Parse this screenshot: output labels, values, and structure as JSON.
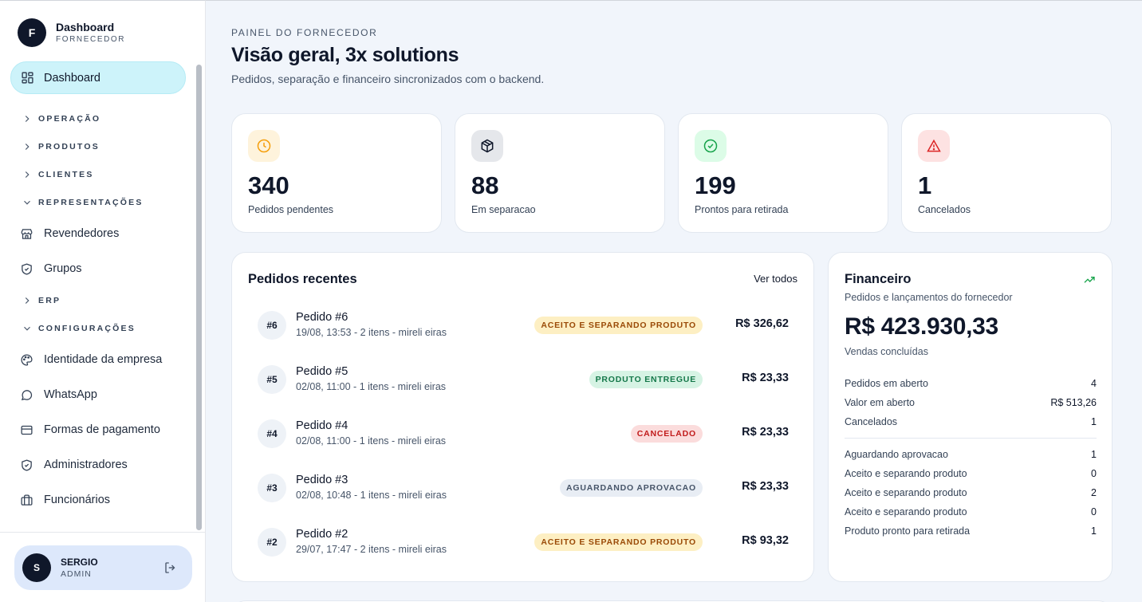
{
  "brand": {
    "logo_letter": "F",
    "title": "Dashboard",
    "subtitle": "FORNECEDOR"
  },
  "nav": {
    "active": {
      "label": "Dashboard",
      "icon": "dashboard-grid-icon"
    },
    "groups": {
      "operacao": "OPERAÇÃO",
      "produtos": "PRODUTOS",
      "clientes": "CLIENTES",
      "representacoes": "REPRESENTAÇÕES",
      "erp": "ERP",
      "configuracoes": "CONFIGURAÇÕES"
    },
    "items": {
      "revendedores": "Revendedores",
      "grupos": "Grupos",
      "identidade": "Identidade da empresa",
      "whatsapp": "WhatsApp",
      "formas_pagamento": "Formas de pagamento",
      "administradores": "Administradores",
      "funcionarios": "Funcionários"
    }
  },
  "user": {
    "initial": "S",
    "name": "SERGIO",
    "role": "ADMIN"
  },
  "header": {
    "eyebrow": "PAINEL DO FORNECEDOR",
    "title": "Visão geral, 3x solutions",
    "subtitle": "Pedidos, separação e financeiro sincronizados com o backend."
  },
  "kpis": [
    {
      "value": "340",
      "label": "Pedidos pendentes",
      "icon": "clock-icon",
      "color": "#f59e0b",
      "bg": "#fef3dc"
    },
    {
      "value": "88",
      "label": "Em separacao",
      "icon": "box-icon",
      "color": "#0f172a",
      "bg": "#e5e7eb"
    },
    {
      "value": "199",
      "label": "Prontos para retirada",
      "icon": "check-circle-icon",
      "color": "#16a34a",
      "bg": "#dcfce7"
    },
    {
      "value": "1",
      "label": "Cancelados",
      "icon": "alert-triangle-icon",
      "color": "#dc2626",
      "bg": "#fde2e2"
    }
  ],
  "recent": {
    "title": "Pedidos recentes",
    "see_all": "Ver todos",
    "orders": [
      {
        "num": "#6",
        "title": "Pedido #6",
        "meta": "19/08, 13:53 - 2 itens - mireli eiras",
        "status": "ACEITO E SEPARANDO PRODUTO",
        "amount": "R$ 326,62"
      },
      {
        "num": "#5",
        "title": "Pedido #5",
        "meta": "02/08, 11:00 - 1 itens - mireli eiras",
        "status": "PRODUTO ENTREGUE",
        "amount": "R$ 23,33"
      },
      {
        "num": "#4",
        "title": "Pedido #4",
        "meta": "02/08, 11:00 - 1 itens - mireli eiras",
        "status": "CANCELADO",
        "amount": "R$ 23,33"
      },
      {
        "num": "#3",
        "title": "Pedido #3",
        "meta": "02/08, 10:48 - 1 itens - mireli eiras",
        "status": "AGUARDANDO APROVACAO",
        "amount": "R$ 23,33"
      },
      {
        "num": "#2",
        "title": "Pedido #2",
        "meta": "29/07, 17:47 - 2 itens - mireli eiras",
        "status": "ACEITO E SEPARANDO PRODUTO",
        "amount": "R$ 93,32"
      }
    ]
  },
  "financeiro": {
    "title": "Financeiro",
    "subtitle": "Pedidos e lançamentos do fornecedor",
    "total": "R$ 423.930,33",
    "total_label": "Vendas concluídas",
    "summary": [
      {
        "label": "Pedidos em aberto",
        "value": "4"
      },
      {
        "label": "Valor em aberto",
        "value": "R$ 513,26"
      },
      {
        "label": "Cancelados",
        "value": "1"
      }
    ],
    "statuses": [
      {
        "label": "Aguardando aprovacao",
        "value": "1"
      },
      {
        "label": "Aceito e separando produto",
        "value": "0"
      },
      {
        "label": "Aceito e separando produto",
        "value": "2"
      },
      {
        "label": "Aceito e separando produto",
        "value": "0"
      },
      {
        "label": "Produto pronto para retirada",
        "value": "1"
      }
    ]
  }
}
